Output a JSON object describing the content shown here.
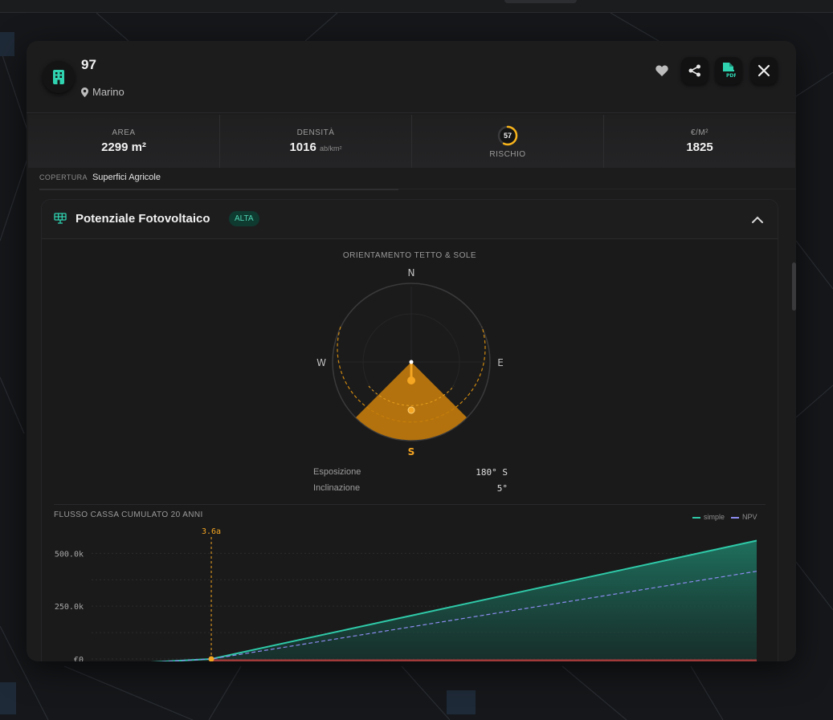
{
  "parcel": {
    "title": "97",
    "location": "Marino"
  },
  "stats": {
    "area_label": "AREA",
    "area_value": "2299 m²",
    "density_label": "DENSITÀ",
    "density_value": "1016",
    "density_unit": "ab/km²",
    "risk_label": "RISCHIO",
    "risk_value": "57",
    "risk_fraction": 0.57,
    "price_label": "€/M²",
    "price_value": "1825"
  },
  "coverage": {
    "label": "COPERTURA",
    "value": "Superfici Agricole"
  },
  "pv": {
    "title": "Potenziale Fotovoltaico",
    "badge": "ALTA",
    "compass_title": "ORIENTAMENTO TETTO & SOLE",
    "dirs": {
      "n": "N",
      "s": "S",
      "e": "E",
      "w": "W"
    },
    "exposure_label": "Esposizione",
    "exposure_value": "180° S",
    "tilt_label": "Inclinazione",
    "tilt_value": "5°",
    "azimuth_deg": 180
  },
  "cashflow": {
    "title": "FLUSSO CASSA CUMULATO 20 ANNI",
    "legend_simple": "simple",
    "legend_npv": "NPV",
    "payback_label": "3.6a",
    "colors": {
      "simple": "#2fc9a8",
      "npv": "#8c8cf0",
      "payback": "#f5a623"
    }
  },
  "chart_data": {
    "type": "line",
    "title": "FLUSSO CASSA CUMULATO 20 ANNI",
    "x": [
      0,
      3.6,
      20
    ],
    "ytick_labels": [
      "€0",
      "250.0k",
      "500.0k"
    ],
    "ytick_values": [
      0,
      250000,
      500000
    ],
    "ylim": [
      0,
      600000
    ],
    "xlim": [
      0,
      20
    ],
    "series": [
      {
        "name": "simple",
        "values": [
          -150000,
          0,
          560000
        ]
      },
      {
        "name": "NPV",
        "values": [
          -150000,
          0,
          415000
        ]
      }
    ],
    "annotations": [
      {
        "x": 3.6,
        "label": "3.6a"
      }
    ],
    "grid": true,
    "legend": "top-right"
  }
}
